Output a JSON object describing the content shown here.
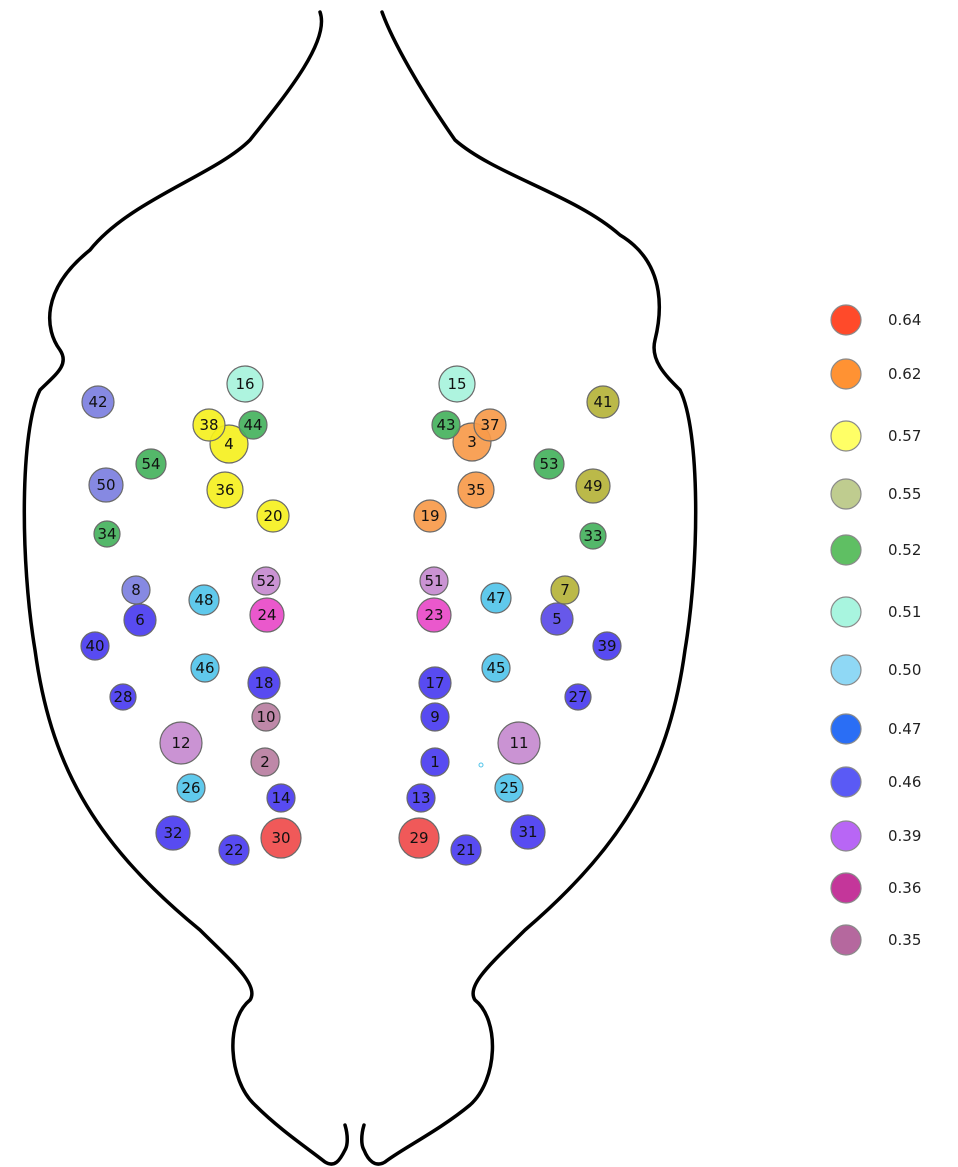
{
  "legend": [
    {
      "value": "0.64",
      "color": "#ff4a2a"
    },
    {
      "value": "0.62",
      "color": "#ff9233"
    },
    {
      "value": "0.57",
      "color": "#ffff66"
    },
    {
      "value": "0.55",
      "color": "#bfcc8f"
    },
    {
      "value": "0.52",
      "color": "#5fbf63"
    },
    {
      "value": "0.51",
      "color": "#a8f5df"
    },
    {
      "value": "0.50",
      "color": "#8fd8f5"
    },
    {
      "value": "0.47",
      "color": "#2a6ef5"
    },
    {
      "value": "0.46",
      "color": "#5a5af5"
    },
    {
      "value": "0.39",
      "color": "#b866f5"
    },
    {
      "value": "0.36",
      "color": "#c4369a"
    },
    {
      "value": "0.35",
      "color": "#b5689e"
    }
  ],
  "nodes": [
    {
      "id": "1",
      "color": "#4a3cf0"
    },
    {
      "id": "2",
      "color": "#b87ea1"
    },
    {
      "id": "3",
      "color": "#f79a4a"
    },
    {
      "id": "4",
      "color": "#f5f01f"
    },
    {
      "id": "5",
      "color": "#5a4ae8"
    },
    {
      "id": "6",
      "color": "#4a3cf0"
    },
    {
      "id": "7",
      "color": "#b5b33a"
    },
    {
      "id": "8",
      "color": "#7c7fe0"
    },
    {
      "id": "9",
      "color": "#4a3cf0"
    },
    {
      "id": "10",
      "color": "#b87ea1"
    },
    {
      "id": "11",
      "color": "#c58acf"
    },
    {
      "id": "12",
      "color": "#c58acf"
    },
    {
      "id": "13",
      "color": "#4a3cf0"
    },
    {
      "id": "14",
      "color": "#4a3cf0"
    },
    {
      "id": "15",
      "color": "#a7f3dc"
    },
    {
      "id": "16",
      "color": "#a7f3dc"
    },
    {
      "id": "17",
      "color": "#4a3cf0"
    },
    {
      "id": "18",
      "color": "#4a3cf0"
    },
    {
      "id": "19",
      "color": "#f79a4a"
    },
    {
      "id": "20",
      "color": "#f5f01f"
    },
    {
      "id": "21",
      "color": "#4a3cf0"
    },
    {
      "id": "22",
      "color": "#4a3cf0"
    },
    {
      "id": "23",
      "color": "#e84ac8"
    },
    {
      "id": "24",
      "color": "#e84ac8"
    },
    {
      "id": "25",
      "color": "#52c4ea"
    },
    {
      "id": "26",
      "color": "#52c4ea"
    },
    {
      "id": "27",
      "color": "#4a3cf0"
    },
    {
      "id": "28",
      "color": "#4a3cf0"
    },
    {
      "id": "29",
      "color": "#ef4b4b"
    },
    {
      "id": "30",
      "color": "#ef4b4b"
    },
    {
      "id": "31",
      "color": "#4a3cf0"
    },
    {
      "id": "32",
      "color": "#4a3cf0"
    },
    {
      "id": "33",
      "color": "#45b25d"
    },
    {
      "id": "34",
      "color": "#45b25d"
    },
    {
      "id": "35",
      "color": "#f79a4a"
    },
    {
      "id": "36",
      "color": "#f5f01f"
    },
    {
      "id": "37",
      "color": "#f79a4a"
    },
    {
      "id": "38",
      "color": "#f5f01f"
    },
    {
      "id": "39",
      "color": "#4a3cf0"
    },
    {
      "id": "40",
      "color": "#4a3cf0"
    },
    {
      "id": "41",
      "color": "#b5b33a"
    },
    {
      "id": "42",
      "color": "#7c7fe0"
    },
    {
      "id": "43",
      "color": "#45b25d"
    },
    {
      "id": "44",
      "color": "#45b25d"
    },
    {
      "id": "45",
      "color": "#52c4ea"
    },
    {
      "id": "46",
      "color": "#52c4ea"
    },
    {
      "id": "47",
      "color": "#52c4ea"
    },
    {
      "id": "48",
      "color": "#52c4ea"
    },
    {
      "id": "49",
      "color": "#b5b33a"
    },
    {
      "id": "50",
      "color": "#7c7fe0"
    },
    {
      "id": "51",
      "color": "#c58acf"
    },
    {
      "id": "52",
      "color": "#c58acf"
    },
    {
      "id": "53",
      "color": "#45b25d"
    },
    {
      "id": "54",
      "color": "#45b25d"
    }
  ]
}
